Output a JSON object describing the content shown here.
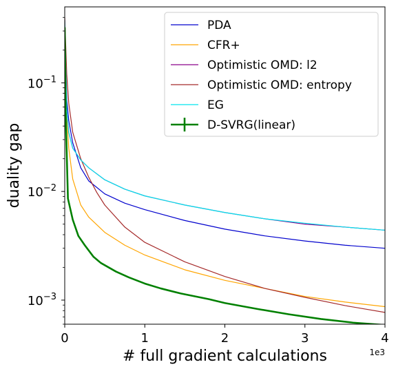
{
  "chart_data": {
    "type": "line",
    "xlabel": "# full gradient calculations",
    "ylabel": "duality gap",
    "x_scale_offset": "1e3",
    "y_scale": "log",
    "xlim": [
      0,
      4000
    ],
    "ylim": [
      0.0006,
      0.5
    ],
    "x_ticks": [
      {
        "value": 0,
        "label": "0"
      },
      {
        "value": 1000,
        "label": "1"
      },
      {
        "value": 2000,
        "label": "2"
      },
      {
        "value": 3000,
        "label": "3"
      },
      {
        "value": 4000,
        "label": "4"
      }
    ],
    "y_ticks": [
      {
        "value": 0.001,
        "base": "10",
        "exp": "−3"
      },
      {
        "value": 0.01,
        "base": "10",
        "exp": "−2"
      },
      {
        "value": 0.1,
        "base": "10",
        "exp": "−1"
      }
    ],
    "grid": false,
    "legend_position": "top-right",
    "series": [
      {
        "name": "PDA",
        "color": "#0000cd",
        "width": 1.2,
        "x": [
          0,
          25,
          50,
          100,
          200,
          300,
          500,
          750,
          1000,
          1500,
          2000,
          2500,
          3000,
          3500,
          4000
        ],
        "y": [
          0.3,
          0.07,
          0.045,
          0.028,
          0.0165,
          0.0125,
          0.0095,
          0.0078,
          0.0068,
          0.0054,
          0.0045,
          0.0039,
          0.0035,
          0.0032,
          0.003
        ]
      },
      {
        "name": "CFR+",
        "color": "#ffa500",
        "width": 1.2,
        "x": [
          0,
          25,
          50,
          100,
          200,
          300,
          500,
          750,
          1000,
          1500,
          2000,
          2500,
          3000,
          3500,
          4000
        ],
        "y": [
          0.2,
          0.05,
          0.025,
          0.013,
          0.0075,
          0.0058,
          0.0042,
          0.0032,
          0.0026,
          0.0019,
          0.00152,
          0.00128,
          0.00108,
          0.00096,
          0.00087
        ]
      },
      {
        "name": "Optimistic OMD: l2",
        "color": "#8b008b",
        "width": 1.2,
        "x": [
          0,
          25,
          50,
          100,
          200,
          300,
          500,
          750,
          1000,
          1500,
          2000,
          2500,
          3000,
          3500,
          4000
        ],
        "y": [
          0.38,
          0.055,
          0.035,
          0.025,
          0.0195,
          0.0165,
          0.0128,
          0.0105,
          0.0091,
          0.0075,
          0.0064,
          0.0056,
          0.005,
          0.0047,
          0.0044
        ]
      },
      {
        "name": "Optimistic OMD: entropy",
        "color": "#a52a2a",
        "width": 1.2,
        "x": [
          0,
          25,
          50,
          100,
          200,
          300,
          400,
          500,
          750,
          1000,
          1500,
          2000,
          2500,
          3000,
          3500,
          4000
        ],
        "y": [
          0.4,
          0.12,
          0.065,
          0.035,
          0.02,
          0.0135,
          0.0098,
          0.0075,
          0.0047,
          0.0034,
          0.00225,
          0.00165,
          0.00128,
          0.00106,
          0.00089,
          0.00077
        ]
      },
      {
        "name": "EG",
        "color": "#00e5ee",
        "width": 1.2,
        "x": [
          0,
          25,
          50,
          100,
          200,
          300,
          500,
          750,
          1000,
          1500,
          2000,
          2500,
          3000,
          3500,
          4000
        ],
        "y": [
          0.38,
          0.055,
          0.035,
          0.025,
          0.0195,
          0.0165,
          0.0128,
          0.0105,
          0.0091,
          0.0075,
          0.0064,
          0.0056,
          0.0051,
          0.0047,
          0.0044
        ]
      },
      {
        "name": "D-SVRG(linear)",
        "color": "#008000",
        "width": 2.6,
        "x": [
          0,
          12,
          40,
          100,
          170,
          250,
          360,
          450,
          640,
          800,
          1000,
          1200,
          1450,
          1800,
          2000,
          2400,
          2800,
          3200,
          3600,
          4000
        ],
        "y": [
          0.32,
          0.05,
          0.0086,
          0.0055,
          0.0039,
          0.0032,
          0.0025,
          0.0022,
          0.00183,
          0.00162,
          0.00142,
          0.00128,
          0.00115,
          0.00102,
          0.00094,
          0.00083,
          0.00074,
          0.00067,
          0.00062,
          0.00059
        ]
      }
    ]
  }
}
